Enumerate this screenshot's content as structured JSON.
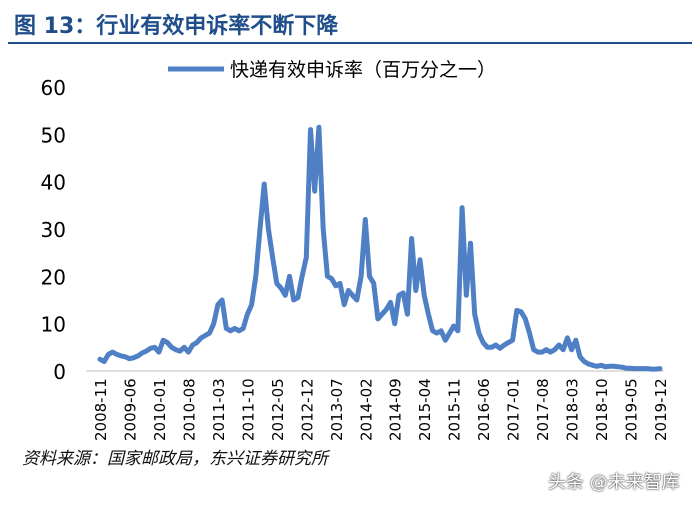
{
  "header": {
    "title": "图 13：行业有效申诉率不断下降"
  },
  "footer": {
    "source": "资料来源：国家邮政局，东兴证券研究所",
    "watermark": "头条 @未来智库"
  },
  "colors": {
    "title": "#1f4e8a",
    "line": "#4f7fc4",
    "axis": "#bfbfbf",
    "text": "#000000"
  },
  "chart_data": {
    "type": "line",
    "title": "",
    "xlabel": "",
    "ylabel": "",
    "ylim": [
      0,
      60
    ],
    "yticks": [
      0,
      10,
      20,
      30,
      40,
      50,
      60
    ],
    "grid": false,
    "legend_position": "top",
    "xtick_labels": [
      "2008-11",
      "2009-06",
      "2010-01",
      "2010-08",
      "2011-03",
      "2011-10",
      "2012-05",
      "2012-12",
      "2013-07",
      "2014-02",
      "2014-09",
      "2015-04",
      "2015-11",
      "2016-06",
      "2017-01",
      "2017-08",
      "2018-03",
      "2018-10",
      "2019-05",
      "2019-12"
    ],
    "series": [
      {
        "name": "快递有效申诉率（百万分之一）",
        "x": [
          "2008-11",
          "2008-12",
          "2009-01",
          "2009-02",
          "2009-03",
          "2009-04",
          "2009-05",
          "2009-06",
          "2009-07",
          "2009-08",
          "2009-09",
          "2009-10",
          "2009-11",
          "2009-12",
          "2010-01",
          "2010-02",
          "2010-03",
          "2010-04",
          "2010-05",
          "2010-06",
          "2010-07",
          "2010-08",
          "2010-09",
          "2010-10",
          "2010-11",
          "2010-12",
          "2011-01",
          "2011-02",
          "2011-03",
          "2011-04",
          "2011-05",
          "2011-06",
          "2011-07",
          "2011-08",
          "2011-09",
          "2011-10",
          "2011-11",
          "2011-12",
          "2012-01",
          "2012-02",
          "2012-03",
          "2012-04",
          "2012-05",
          "2012-06",
          "2012-07",
          "2012-08",
          "2012-09",
          "2012-10",
          "2012-11",
          "2012-12",
          "2013-01",
          "2013-02",
          "2013-03",
          "2013-04",
          "2013-05",
          "2013-06",
          "2013-07",
          "2013-08",
          "2013-09",
          "2013-10",
          "2013-11",
          "2013-12",
          "2014-01",
          "2014-02",
          "2014-03",
          "2014-04",
          "2014-05",
          "2014-06",
          "2014-07",
          "2014-08",
          "2014-09",
          "2014-10",
          "2014-11",
          "2014-12",
          "2015-01",
          "2015-02",
          "2015-03",
          "2015-04",
          "2015-05",
          "2015-06",
          "2015-07",
          "2015-08",
          "2015-09",
          "2015-10",
          "2015-11",
          "2015-12",
          "2016-01",
          "2016-02",
          "2016-03",
          "2016-04",
          "2016-05",
          "2016-06",
          "2016-07",
          "2016-08",
          "2016-09",
          "2016-10",
          "2016-11",
          "2016-12",
          "2017-01",
          "2017-02",
          "2017-03",
          "2017-04",
          "2017-05",
          "2017-06",
          "2017-07",
          "2017-08",
          "2017-09",
          "2017-10",
          "2017-11",
          "2017-12",
          "2018-01",
          "2018-02",
          "2018-03",
          "2018-04",
          "2018-05",
          "2018-06",
          "2018-07",
          "2018-08",
          "2018-09",
          "2018-10",
          "2018-11",
          "2018-12",
          "2019-01",
          "2019-02",
          "2019-03",
          "2019-04",
          "2019-05",
          "2019-06",
          "2019-07",
          "2019-08",
          "2019-09",
          "2019-10",
          "2019-11",
          "2019-12"
        ],
        "values": [
          2.5,
          2.0,
          3.5,
          4.0,
          3.5,
          3.2,
          3.0,
          2.6,
          2.8,
          3.2,
          3.8,
          4.2,
          4.8,
          5.0,
          4.0,
          6.5,
          6.0,
          5.0,
          4.5,
          4.2,
          5.0,
          4.0,
          5.5,
          6.0,
          7.0,
          7.5,
          8.0,
          10.0,
          14.0,
          15.0,
          9.0,
          8.5,
          9.0,
          8.5,
          9.0,
          12.0,
          14.0,
          20.0,
          30.0,
          39.5,
          30.0,
          24.0,
          18.5,
          17.5,
          16.0,
          20.0,
          15.0,
          15.5,
          20.0,
          24.0,
          51.0,
          38.0,
          51.5,
          30.0,
          20.0,
          19.5,
          18.0,
          18.5,
          14.0,
          17.0,
          16.0,
          15.0,
          20.0,
          32.0,
          20.0,
          18.5,
          11.0,
          12.0,
          13.0,
          14.5,
          10.0,
          16.0,
          16.5,
          12.0,
          28.0,
          17.0,
          23.5,
          16.0,
          12.0,
          8.5,
          8.0,
          8.5,
          6.5,
          8.0,
          9.5,
          8.5,
          34.5,
          16.0,
          27.0,
          12.0,
          8.0,
          6.0,
          5.0,
          5.0,
          5.5,
          4.8,
          5.5,
          6.0,
          6.5,
          12.8,
          12.5,
          11.0,
          8.0,
          4.5,
          4.0,
          4.0,
          4.5,
          4.0,
          4.5,
          5.5,
          4.5,
          7.0,
          4.5,
          6.5,
          3.0,
          2.0,
          1.5,
          1.2,
          1.0,
          1.2,
          0.9,
          1.0,
          1.0,
          0.9,
          0.8,
          0.6,
          0.6,
          0.5,
          0.5,
          0.5,
          0.5,
          0.4,
          0.4,
          0.5
        ]
      }
    ]
  }
}
